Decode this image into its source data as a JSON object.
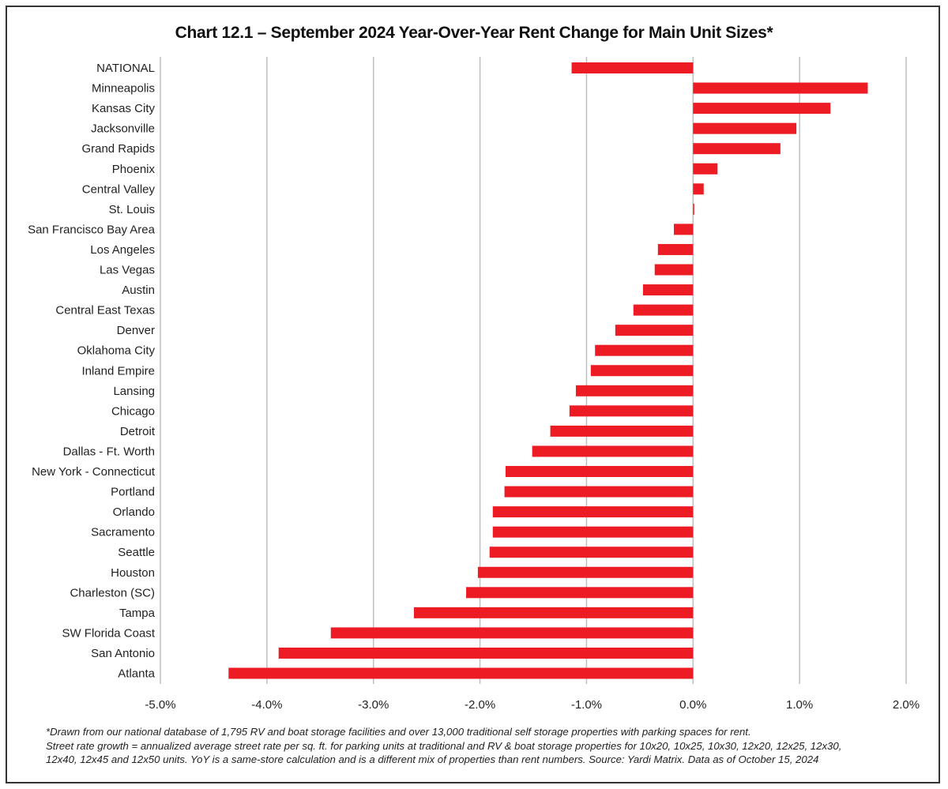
{
  "chart_data": {
    "type": "bar",
    "orientation": "horizontal",
    "title": "Chart 12.1 – September 2024 Year-Over-Year Rent Change for Main Unit Sizes*",
    "categories": [
      "NATIONAL",
      "Minneapolis",
      "Kansas City",
      "Jacksonville",
      "Grand Rapids",
      "Phoenix",
      "Central Valley",
      "St. Louis",
      "San Francisco Bay Area",
      "Los Angeles",
      "Las Vegas",
      "Austin",
      "Central East Texas",
      "Denver",
      "Oklahoma City",
      "Inland Empire",
      "Lansing",
      "Chicago",
      "Detroit",
      "Dallas - Ft. Worth",
      "New York - Connecticut",
      "Portland",
      "Orlando",
      "Sacramento",
      "Seattle",
      "Houston",
      "Charleston (SC)",
      "Tampa",
      "SW Florida Coast",
      "San Antonio",
      "Atlanta"
    ],
    "values": [
      -1.14,
      1.64,
      1.29,
      0.97,
      0.82,
      0.23,
      0.1,
      0.01,
      -0.18,
      -0.33,
      -0.36,
      -0.47,
      -0.56,
      -0.73,
      -0.92,
      -0.96,
      -1.1,
      -1.16,
      -1.34,
      -1.51,
      -1.76,
      -1.77,
      -1.88,
      -1.88,
      -1.91,
      -2.02,
      -2.13,
      -2.62,
      -3.4,
      -3.89,
      -4.36
    ],
    "unit": "%",
    "xlim": [
      -5,
      2
    ],
    "x_ticks": [
      -5,
      -4,
      -3,
      -2,
      -1,
      0,
      1,
      2
    ],
    "x_tick_labels": [
      "-5.0%",
      "-4.0%",
      "-3.0%",
      "-2.0%",
      "-1.0%",
      "0.0%",
      "1.0%",
      "2.0%"
    ],
    "grid": "vertical",
    "legend": "none",
    "bar_color": "#ED1C24",
    "grid_color": "#BFBFBF"
  },
  "footnote": [
    "*Drawn from our national database of 1,795 RV and boat storage facilities and over 13,000 traditional self storage properties with parking spaces for rent.",
    "Street rate growth = annualized average street rate per sq. ft. for parking units at traditional and RV & boat storage properties for 10x20, 10x25, 10x30, 12x20, 12x25, 12x30,",
    "12x40, 12x45 and 12x50 units. YoY is a same-store calculation and is a different mix of properties than rent numbers. Source: Yardi Matrix. Data as of October 15, 2024"
  ]
}
